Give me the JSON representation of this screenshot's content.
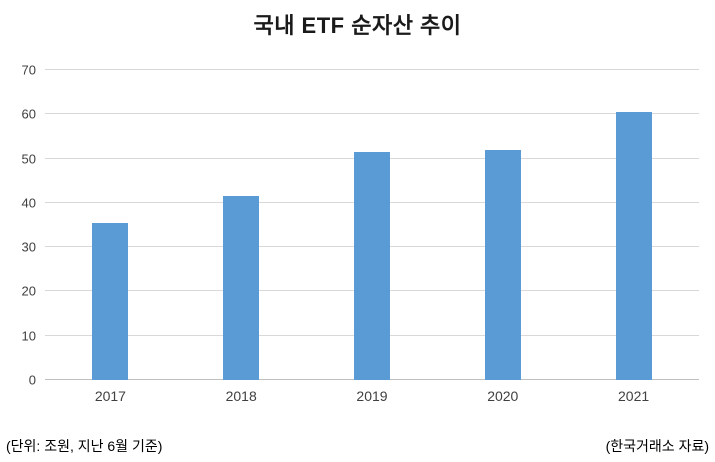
{
  "chart_data": {
    "type": "bar",
    "title": "국내 ETF 순자산 추이",
    "categories": [
      "2017",
      "2018",
      "2019",
      "2020",
      "2021"
    ],
    "values": [
      35.5,
      41.5,
      51.5,
      52,
      60.5
    ],
    "xlabel": "",
    "ylabel": "",
    "ylim": [
      0,
      70
    ],
    "yticks": [
      0,
      10,
      20,
      30,
      40,
      50,
      60,
      70
    ],
    "bar_color": "#5b9bd5",
    "grid": true,
    "legend": "none"
  },
  "footer": {
    "left_note": "(단위: 조원, 지난 6월 기준)",
    "right_note": "(한국거래소 자료)"
  }
}
